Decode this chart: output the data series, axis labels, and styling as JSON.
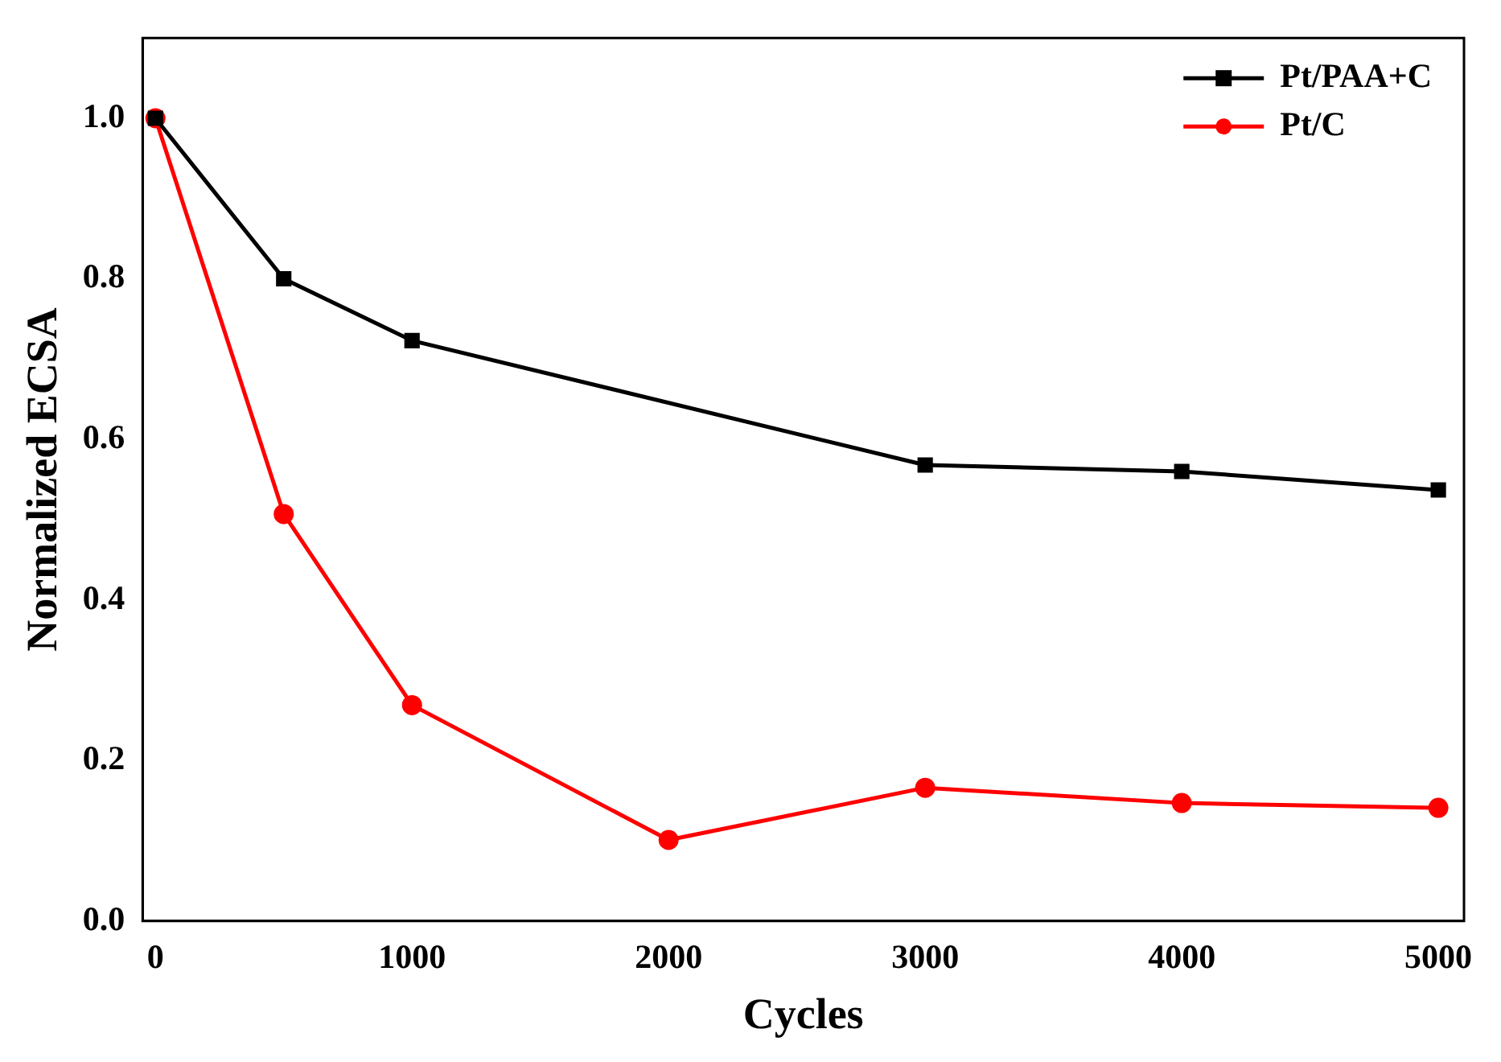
{
  "chart_data": {
    "type": "line",
    "xlabel": "Cycles",
    "ylabel": "Normalized ECSA",
    "xlim": [
      -50,
      5100
    ],
    "ylim": [
      0,
      1.1
    ],
    "xticks": [
      0,
      1000,
      2000,
      3000,
      4000,
      5000
    ],
    "yticks": [
      {
        "value": 0,
        "label": "0.0"
      },
      0.2,
      0.4,
      0.6,
      0.8,
      {
        "value": 1,
        "label": "1.0"
      }
    ],
    "grid": false,
    "legend": "top right",
    "series": [
      {
        "name": "Pt/PAA+C",
        "color": "#000000",
        "marker": "square",
        "x": [
          0,
          500,
          1000,
          3000,
          4000,
          5000
        ],
        "values": [
          1.0,
          0.8,
          0.723,
          0.568,
          0.56,
          0.537
        ]
      },
      {
        "name": "Pt/C",
        "color": "#ff0000",
        "marker": "circle",
        "x": [
          0,
          500,
          1000,
          2000,
          3000,
          4000,
          5000
        ],
        "values": [
          1.0,
          0.507,
          0.269,
          0.101,
          0.166,
          0.147,
          0.141
        ]
      }
    ]
  }
}
